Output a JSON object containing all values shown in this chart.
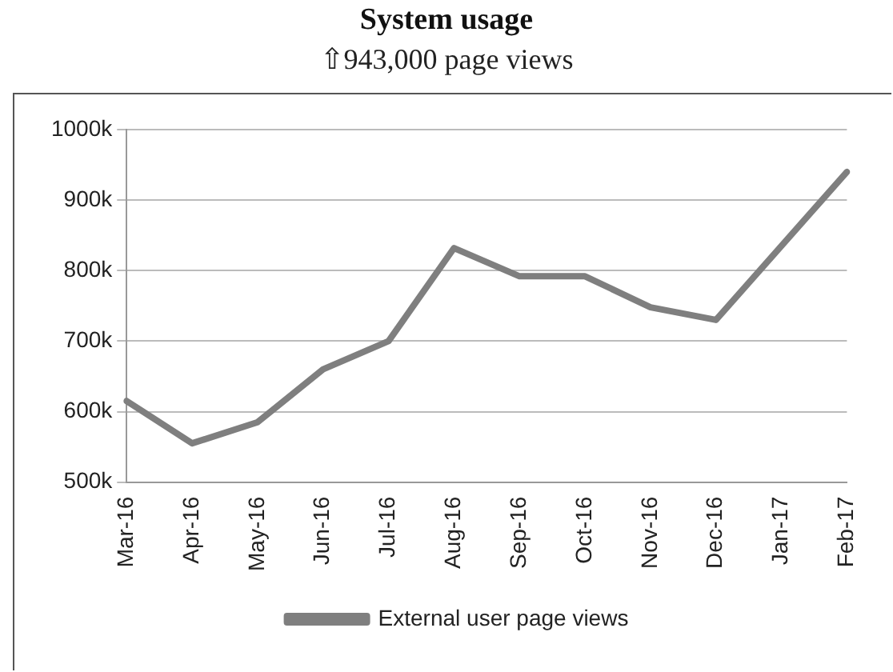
{
  "chart_data": {
    "type": "line",
    "title": "System usage",
    "subtitle": "⇧943,000 page views",
    "categories": [
      "Mar-16",
      "Apr-16",
      "May-16",
      "Jun-16",
      "Jul-16",
      "Aug-16",
      "Sep-16",
      "Oct-16",
      "Nov-16",
      "Dec-16",
      "Jan-17",
      "Feb-17"
    ],
    "series": [
      {
        "name": "External user page views",
        "color": "#7f7f7f",
        "values": [
          615000,
          555000,
          585000,
          660000,
          700000,
          832000,
          792000,
          792000,
          748000,
          730000,
          835000,
          940000
        ]
      }
    ],
    "ylim": [
      500000,
      1000000
    ],
    "yticks": [
      {
        "value": 500000,
        "label": "500k"
      },
      {
        "value": 600000,
        "label": "600k"
      },
      {
        "value": 700000,
        "label": "700k"
      },
      {
        "value": 800000,
        "label": "800k"
      },
      {
        "value": 900000,
        "label": "900k"
      },
      {
        "value": 1000000,
        "label": "1000k"
      }
    ],
    "grid": "y",
    "legend": "bottom",
    "marker": "none",
    "line_style": "solid"
  }
}
